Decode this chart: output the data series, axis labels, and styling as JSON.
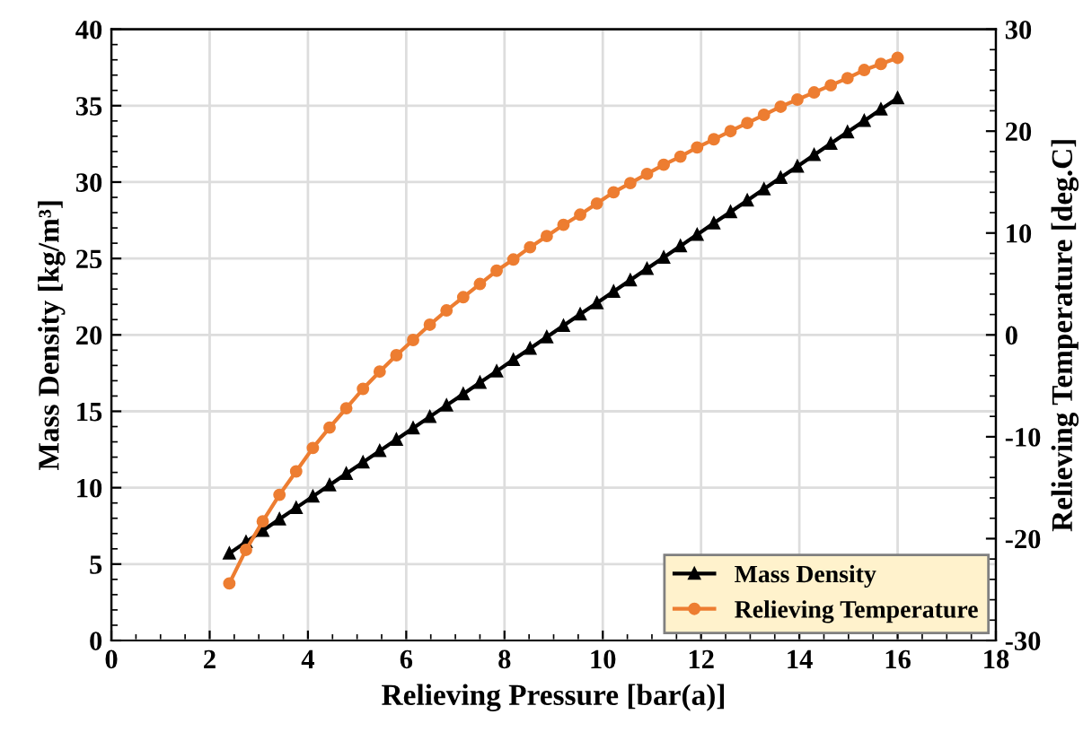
{
  "chart_data": {
    "type": "line",
    "xlabel": "Relieving Pressure [bar(a)]",
    "ylabel": "Mass Density [kg/m³]",
    "y2label": "Relieving Temperature [deg.C]",
    "x": [
      2.4,
      2.74,
      3.08,
      3.42,
      3.76,
      4.1,
      4.44,
      4.78,
      5.12,
      5.46,
      5.8,
      6.14,
      6.48,
      6.82,
      7.16,
      7.5,
      7.84,
      8.18,
      8.52,
      8.86,
      9.2,
      9.54,
      9.88,
      10.22,
      10.56,
      10.9,
      11.24,
      11.58,
      11.92,
      12.26,
      12.6,
      12.94,
      13.28,
      13.62,
      13.96,
      14.3,
      14.64,
      14.98,
      15.32,
      15.66,
      16.0
    ],
    "series": [
      {
        "name": "Mass Density",
        "color": "#000000",
        "marker": "triangle",
        "values": [
          5.7,
          6.45,
          7.19,
          7.94,
          8.68,
          9.43,
          10.17,
          10.92,
          11.66,
          12.41,
          13.15,
          13.9,
          14.64,
          15.39,
          16.13,
          16.88,
          17.62,
          18.37,
          19.11,
          19.86,
          20.6,
          21.35,
          22.09,
          22.84,
          23.58,
          24.33,
          25.07,
          25.82,
          26.56,
          27.31,
          28.05,
          28.8,
          29.54,
          30.29,
          31.03,
          31.78,
          32.52,
          33.27,
          34.01,
          34.76,
          35.5
        ]
      },
      {
        "name": "Relieving Temperature",
        "color": "#ed7d31",
        "marker": "circle",
        "axis": "y2",
        "values": [
          -24.4,
          -21.1,
          -18.3,
          -15.7,
          -13.4,
          -11.1,
          -9.1,
          -7.2,
          -5.3,
          -3.6,
          -2.0,
          -0.5,
          1.0,
          2.4,
          3.7,
          5.0,
          6.3,
          7.4,
          8.6,
          9.7,
          10.8,
          11.8,
          12.9,
          14.0,
          14.9,
          15.8,
          16.7,
          17.5,
          18.4,
          19.2,
          20.0,
          20.8,
          21.6,
          22.4,
          23.1,
          23.8,
          24.5,
          25.2,
          26.0,
          26.6,
          27.2
        ]
      }
    ],
    "xlim": [
      0,
      18
    ],
    "xticks": [
      0,
      2,
      4,
      6,
      8,
      10,
      12,
      14,
      16,
      18
    ],
    "ylim": [
      0,
      40
    ],
    "yticks": [
      0,
      5,
      10,
      15,
      20,
      25,
      30,
      35,
      40
    ],
    "y2lim": [
      -30,
      30
    ],
    "y2ticks": [
      -30,
      -20,
      -10,
      0,
      10,
      20,
      30
    ],
    "grid": true,
    "legend": "bottom right",
    "line_style": "solid"
  }
}
